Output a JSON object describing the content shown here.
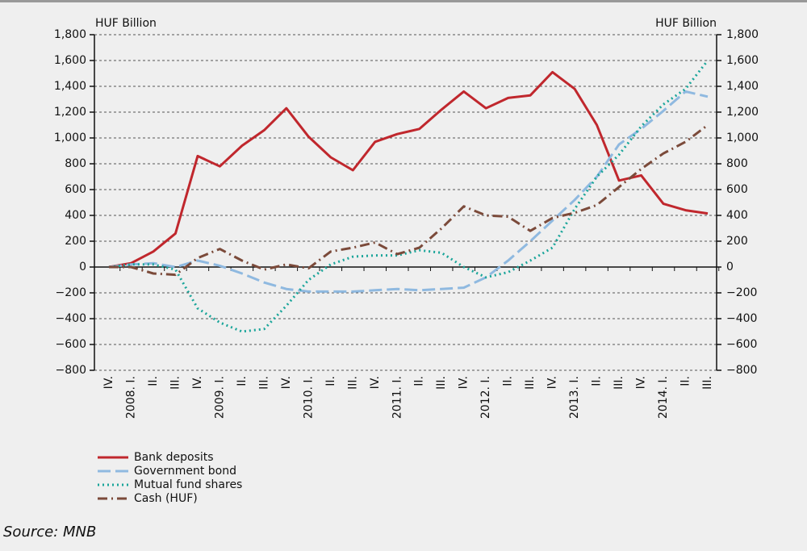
{
  "chart_data": {
    "type": "line",
    "ylabel": "HUF Billion",
    "y2label": "HUF Billion",
    "source": "Source: MNB",
    "categories": [
      "IV.",
      "2008. I.",
      "II.",
      "III.",
      "IV.",
      "2009. I.",
      "II.",
      "III.",
      "IV.",
      "2010. I.",
      "II.",
      "III.",
      "IV.",
      "2011. I.",
      "II.",
      "III.",
      "IV.",
      "2012. I.",
      "II.",
      "III.",
      "IV.",
      "2013. I.",
      "II.",
      "III.",
      "IV.",
      "2014. I.",
      "II.",
      "III."
    ],
    "series": [
      {
        "name": "Bank deposits",
        "color": "#c0272d",
        "style": "solid",
        "values": [
          0,
          30,
          120,
          260,
          860,
          780,
          940,
          1060,
          1230,
          1010,
          850,
          750,
          970,
          1030,
          1070,
          1220,
          1360,
          1230,
          1310,
          1330,
          1510,
          1380,
          1100,
          670,
          710,
          490,
          440,
          415
        ]
      },
      {
        "name": "Government bond",
        "color": "#8fb9e0",
        "style": "dashed",
        "values": [
          0,
          20,
          30,
          0,
          50,
          10,
          -50,
          -120,
          -170,
          -190,
          -190,
          -190,
          -180,
          -170,
          -180,
          -170,
          -160,
          -80,
          50,
          200,
          360,
          520,
          700,
          950,
          1070,
          1210,
          1360,
          1320
        ]
      },
      {
        "name": "Mutual fund shares",
        "color": "#1aa59a",
        "style": "dotted",
        "values": [
          0,
          20,
          20,
          -20,
          -320,
          -430,
          -500,
          -480,
          -300,
          -100,
          20,
          80,
          90,
          90,
          130,
          110,
          0,
          -80,
          -40,
          50,
          150,
          450,
          700,
          870,
          1090,
          1260,
          1380,
          1600
        ]
      },
      {
        "name": "Cash (HUF)",
        "color": "#7b4a3a",
        "style": "dashdot",
        "values": [
          0,
          0,
          -50,
          -60,
          70,
          140,
          50,
          -20,
          20,
          -10,
          120,
          150,
          190,
          100,
          150,
          300,
          470,
          400,
          390,
          280,
          380,
          420,
          480,
          620,
          760,
          880,
          970,
          1100
        ]
      }
    ],
    "ylim": [
      -800,
      1800
    ],
    "yticks": [
      {
        "value": -800,
        "label": "−800"
      },
      {
        "value": -600,
        "label": "−600"
      },
      {
        "value": -400,
        "label": "−400"
      },
      {
        "value": -200,
        "label": "−200"
      },
      0,
      200,
      400,
      600,
      800,
      {
        "value": 1000,
        "label": "1,000"
      },
      {
        "value": 1200,
        "label": "1,200"
      },
      {
        "value": 1400,
        "label": "1,400"
      },
      {
        "value": 1600,
        "label": "1,600"
      },
      {
        "value": 1800,
        "label": "1,800"
      }
    ],
    "y2lim": [
      -800,
      1800
    ],
    "y2ticks": [
      {
        "value": -800,
        "label": "−800"
      },
      {
        "value": -600,
        "label": "−600"
      },
      {
        "value": -400,
        "label": "−400"
      },
      {
        "value": -200,
        "label": "−200"
      },
      0,
      200,
      400,
      600,
      800,
      {
        "value": 1000,
        "label": "1,000"
      },
      {
        "value": 1200,
        "label": "1,200"
      },
      {
        "value": 1400,
        "label": "1,400"
      },
      {
        "value": 1600,
        "label": "1,600"
      },
      {
        "value": 1800,
        "label": "1,800"
      }
    ],
    "grid": true
  }
}
